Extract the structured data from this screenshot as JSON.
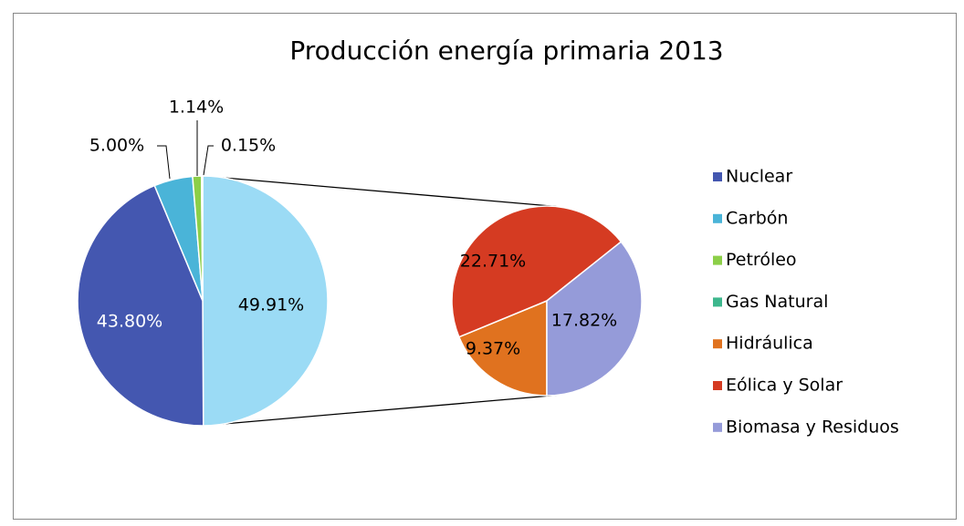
{
  "chart_data": {
    "type": "pie-of-pie",
    "title": "Producción energía primaria 2013",
    "categories": [
      "Nuclear",
      "Carbón",
      "Petróleo",
      "Gas Natural",
      "Hidráulica",
      "Eólica y Solar",
      "Biomasa y Residuos"
    ],
    "values": [
      43.8,
      5.0,
      1.14,
      0.15,
      9.37,
      22.71,
      17.82
    ],
    "value_labels": [
      "43.80%",
      "5.00%",
      "1.14%",
      "0.15%",
      "9.37%",
      "22.71%",
      "17.82%"
    ],
    "colors": [
      "#4457b0",
      "#4ab4d8",
      "#8ccf48",
      "#3db78d",
      "#e0721f",
      "#d53b22",
      "#959bd9"
    ],
    "secondary_count": 3,
    "other_value": 49.91,
    "other_value_label": "49.91%",
    "other_color": "#9bdbf5",
    "legend": "right"
  }
}
